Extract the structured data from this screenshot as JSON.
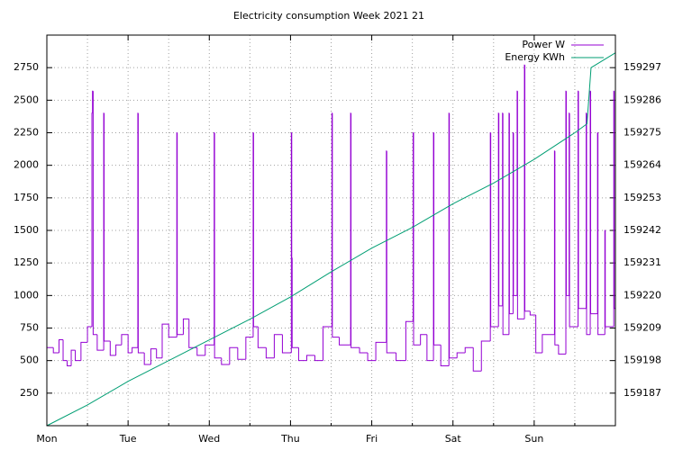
{
  "chart_data": {
    "type": "line",
    "title": "Electricity consumption Week 2021 21",
    "x": [
      0,
      0.08,
      0.15,
      0.2,
      0.25,
      0.3,
      0.35,
      0.42,
      0.5,
      0.555,
      0.562,
      0.57,
      0.62,
      0.7,
      0.705,
      0.78,
      0.85,
      0.92,
      1.0,
      1.05,
      1.12,
      1.125,
      1.2,
      1.28,
      1.35,
      1.42,
      1.5,
      1.6,
      1.605,
      1.68,
      1.75,
      1.85,
      1.95,
      2.06,
      2.065,
      2.15,
      2.25,
      2.35,
      2.45,
      2.54,
      2.545,
      2.6,
      2.7,
      2.8,
      2.9,
      3.01,
      3.015,
      3.02,
      3.1,
      3.2,
      3.3,
      3.4,
      3.51,
      3.515,
      3.6,
      3.74,
      3.745,
      3.85,
      3.95,
      4.05,
      4.18,
      4.185,
      4.3,
      4.42,
      4.51,
      4.515,
      4.6,
      4.68,
      4.76,
      4.765,
      4.85,
      4.95,
      4.955,
      5.05,
      5.15,
      5.25,
      5.35,
      5.46,
      5.465,
      5.56,
      5.565,
      5.61,
      5.615,
      5.69,
      5.695,
      5.74,
      5.745,
      5.79,
      5.795,
      5.88,
      5.885,
      5.95,
      6.02,
      6.1,
      6.25,
      6.255,
      6.3,
      6.39,
      6.395,
      6.43,
      6.435,
      6.54,
      6.545,
      6.64,
      6.645,
      6.69,
      6.695,
      6.78,
      6.785,
      6.87,
      6.875,
      6.98,
      6.985,
      7.0
    ],
    "series": [
      {
        "name": "Power W",
        "color": "#9400d3",
        "style": "steps",
        "axis": "y",
        "values": [
          600,
          560,
          660,
          500,
          460,
          580,
          500,
          640,
          760,
          2400,
          2570,
          700,
          580,
          2400,
          650,
          540,
          620,
          700,
          560,
          600,
          2400,
          560,
          470,
          590,
          520,
          780,
          680,
          2250,
          700,
          820,
          600,
          540,
          620,
          2250,
          520,
          470,
          600,
          510,
          680,
          2250,
          760,
          600,
          520,
          700,
          560,
          2250,
          1290,
          600,
          500,
          540,
          500,
          760,
          2400,
          680,
          620,
          2400,
          600,
          560,
          500,
          640,
          2110,
          560,
          500,
          800,
          2250,
          620,
          700,
          500,
          2250,
          620,
          460,
          2400,
          520,
          560,
          600,
          420,
          650,
          2250,
          760,
          2400,
          920,
          2400,
          700,
          2400,
          860,
          2250,
          1000,
          2570,
          820,
          2770,
          880,
          850,
          560,
          700,
          2110,
          620,
          550,
          2570,
          1000,
          2400,
          760,
          2570,
          900,
          2400,
          700,
          2570,
          860,
          2250,
          700,
          1500,
          760,
          2570,
          900,
          900
        ]
      },
      {
        "name": "Energy KWh",
        "color": "#009e73",
        "style": "line",
        "axis": "y2",
        "x": [
          0,
          0.5,
          1,
          1.5,
          2,
          2.5,
          3,
          3.5,
          4,
          4.5,
          5,
          5.5,
          6,
          6.5,
          6.65,
          6.7,
          7
        ],
        "values": [
          159176,
          159183,
          159191,
          159198,
          159205,
          159212,
          159219.5,
          159228,
          159236,
          159243,
          159251,
          159258,
          159266,
          159275,
          159278,
          159297,
          159302
        ]
      }
    ],
    "xlim": [
      0,
      7
    ],
    "xticks": [
      {
        "value": 0,
        "label": "Mon"
      },
      {
        "value": 1,
        "label": "Tue"
      },
      {
        "value": 2,
        "label": "Wed"
      },
      {
        "value": 3,
        "label": "Thu"
      },
      {
        "value": 4,
        "label": "Fri"
      },
      {
        "value": 5,
        "label": "Sat"
      },
      {
        "value": 6,
        "label": "Sun"
      }
    ],
    "xminor_ticks": [
      0.5,
      1.5,
      2.5,
      3.5,
      4.5,
      5.5,
      6.5
    ],
    "ylim": [
      0,
      3000
    ],
    "yticks": [
      250,
      500,
      750,
      1000,
      1250,
      1500,
      1750,
      2000,
      2250,
      2500,
      2750
    ],
    "y2lim": [
      159176,
      159308
    ],
    "y2ticks": [
      159187,
      159198,
      159209,
      159220,
      159231,
      159242,
      159253,
      159264,
      159275,
      159286,
      159297
    ],
    "grid": true,
    "legend": "top-right"
  }
}
